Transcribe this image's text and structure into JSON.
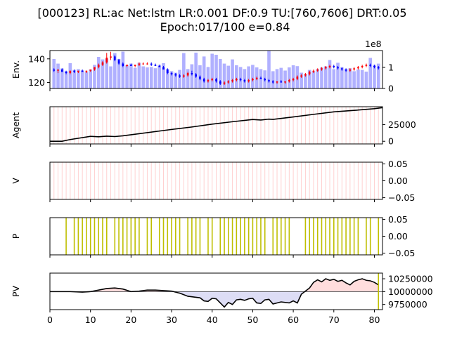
{
  "title_line1": "[000123] RL:ac Net:lstm LR:0.001 DF:0.9 TU:[760,7606] DRT:0.05",
  "title_line2": "Epoch:017/100 e=0.84",
  "chart_data": [
    {
      "type": "candlestick",
      "ylabel": "Env.",
      "xlim": [
        0,
        82
      ],
      "ylim": [
        115,
        147
      ],
      "yticks": [
        120,
        140
      ],
      "right_axis": {
        "ylim": [
          0,
          180000000
        ],
        "ticks": [
          "0",
          "1"
        ],
        "tick_values": [
          0,
          100000000
        ],
        "offset_label": "1e8"
      },
      "bullish_color": "#ff0000",
      "bearish_color": "#0000ff",
      "volume_color": "#b0b0ff",
      "ohlc": [
        [
          1,
          131,
          132,
          129,
          130
        ],
        [
          2,
          130,
          131,
          128,
          131
        ],
        [
          3,
          131,
          132,
          129,
          129
        ],
        [
          4,
          129,
          130,
          127,
          128
        ],
        [
          5,
          128,
          130,
          127,
          130
        ],
        [
          6,
          130,
          131,
          128,
          129
        ],
        [
          7,
          129,
          130,
          128,
          130
        ],
        [
          8,
          130,
          131,
          129,
          129
        ],
        [
          9,
          129,
          130,
          128,
          130
        ],
        [
          10,
          130,
          131,
          129,
          131
        ],
        [
          11,
          131,
          133,
          130,
          133
        ],
        [
          12,
          133,
          136,
          132,
          135
        ],
        [
          13,
          135,
          138,
          134,
          137
        ],
        [
          14,
          137,
          145,
          136,
          141
        ],
        [
          15,
          141,
          146,
          139,
          142
        ],
        [
          16,
          142,
          143,
          138,
          139
        ],
        [
          17,
          139,
          140,
          135,
          136
        ],
        [
          18,
          136,
          137,
          133,
          134
        ],
        [
          19,
          134,
          135,
          133,
          135
        ],
        [
          20,
          135,
          136,
          134,
          134
        ],
        [
          21,
          134,
          135,
          133,
          135
        ],
        [
          22,
          135,
          137,
          134,
          136
        ],
        [
          23,
          136,
          137,
          135,
          136
        ],
        [
          24,
          136,
          137,
          135,
          136
        ],
        [
          25,
          136,
          137,
          134,
          135
        ],
        [
          26,
          135,
          136,
          134,
          134
        ],
        [
          27,
          134,
          135,
          133,
          133
        ],
        [
          28,
          133,
          134,
          131,
          131
        ],
        [
          29,
          131,
          132,
          127,
          128
        ],
        [
          30,
          128,
          129,
          126,
          127
        ],
        [
          31,
          127,
          128,
          125,
          126
        ],
        [
          32,
          126,
          127,
          124,
          125
        ],
        [
          33,
          125,
          127,
          124,
          126
        ],
        [
          34,
          126,
          129,
          125,
          128
        ],
        [
          35,
          128,
          130,
          126,
          127
        ],
        [
          36,
          127,
          128,
          124,
          125
        ],
        [
          37,
          125,
          126,
          122,
          123
        ],
        [
          38,
          123,
          124,
          120,
          121
        ],
        [
          39,
          121,
          123,
          120,
          122
        ],
        [
          40,
          122,
          124,
          121,
          123
        ],
        [
          41,
          123,
          124,
          120,
          121
        ],
        [
          42,
          121,
          122,
          118,
          119
        ],
        [
          43,
          119,
          121,
          118,
          120
        ],
        [
          44,
          120,
          122,
          119,
          121
        ],
        [
          45,
          121,
          123,
          120,
          122
        ],
        [
          46,
          122,
          124,
          121,
          123
        ],
        [
          47,
          123,
          124,
          121,
          122
        ],
        [
          48,
          122,
          123,
          120,
          121
        ],
        [
          49,
          121,
          123,
          120,
          122
        ],
        [
          50,
          122,
          124,
          121,
          123
        ],
        [
          51,
          123,
          125,
          122,
          124
        ],
        [
          52,
          124,
          125,
          123,
          123
        ],
        [
          53,
          123,
          124,
          121,
          122
        ],
        [
          54,
          122,
          123,
          120,
          121
        ],
        [
          55,
          121,
          122,
          119,
          120
        ],
        [
          56,
          120,
          121,
          119,
          121
        ],
        [
          57,
          121,
          122,
          120,
          120
        ],
        [
          58,
          120,
          121,
          119,
          121
        ],
        [
          59,
          121,
          123,
          120,
          122
        ],
        [
          60,
          122,
          124,
          121,
          123
        ],
        [
          61,
          123,
          126,
          122,
          125
        ],
        [
          62,
          125,
          127,
          124,
          126
        ],
        [
          63,
          126,
          128,
          125,
          127
        ],
        [
          64,
          127,
          130,
          126,
          129
        ],
        [
          65,
          129,
          131,
          128,
          130
        ],
        [
          66,
          130,
          132,
          129,
          131
        ],
        [
          67,
          131,
          133,
          130,
          132
        ],
        [
          68,
          132,
          134,
          131,
          133
        ],
        [
          69,
          133,
          135,
          132,
          134
        ],
        [
          70,
          134,
          135,
          132,
          133
        ],
        [
          71,
          133,
          134,
          131,
          132
        ],
        [
          72,
          132,
          133,
          130,
          131
        ],
        [
          73,
          131,
          132,
          129,
          130
        ],
        [
          74,
          130,
          132,
          129,
          131
        ],
        [
          75,
          131,
          133,
          130,
          132
        ],
        [
          76,
          132,
          134,
          131,
          133
        ],
        [
          77,
          133,
          135,
          132,
          134
        ],
        [
          78,
          134,
          136,
          133,
          135
        ],
        [
          79,
          135,
          136,
          133,
          134
        ],
        [
          80,
          134,
          135,
          132,
          133
        ],
        [
          81,
          133,
          134,
          131,
          132
        ]
      ],
      "volume": [
        140000000,
        118000000,
        95000000,
        82000000,
        120000000,
        88000000,
        92000000,
        86000000,
        78000000,
        90000000,
        112000000,
        150000000,
        138000000,
        142000000,
        105000000,
        168000000,
        140000000,
        175000000,
        110000000,
        118000000,
        98000000,
        122000000,
        105000000,
        100000000,
        102000000,
        96000000,
        112000000,
        120000000,
        92000000,
        82000000,
        75000000,
        88000000,
        168000000,
        92000000,
        115000000,
        170000000,
        110000000,
        152000000,
        102000000,
        165000000,
        160000000,
        140000000,
        118000000,
        108000000,
        138000000,
        110000000,
        102000000,
        92000000,
        105000000,
        112000000,
        100000000,
        92000000,
        86000000,
        178000000,
        82000000,
        92000000,
        98000000,
        85000000,
        100000000,
        110000000,
        106000000,
        75000000,
        68000000,
        88000000,
        82000000,
        92000000,
        100000000,
        105000000,
        135000000,
        92000000,
        122000000,
        100000000,
        92000000,
        96000000,
        82000000,
        90000000,
        88000000,
        80000000,
        145000000,
        112000000,
        118000000
      ]
    },
    {
      "type": "line",
      "ylabel": "Agent",
      "xlim": [
        0,
        82
      ],
      "ylim": [
        -4000,
        52000
      ],
      "yticks": [
        0,
        25000
      ],
      "line_color": "#000000",
      "x": [
        0,
        3,
        5,
        10,
        12,
        14,
        16,
        18,
        20,
        30,
        35,
        40,
        45,
        50,
        52,
        54,
        55,
        60,
        65,
        70,
        75,
        80,
        82
      ],
      "y": [
        0,
        0,
        2600,
        7400,
        6800,
        7700,
        7100,
        8200,
        9800,
        17800,
        21500,
        25800,
        29400,
        32800,
        32000,
        33300,
        32900,
        36600,
        40500,
        44300,
        46500,
        49000,
        50600
      ],
      "background_stripes_color": "#ffd0d0"
    },
    {
      "type": "line",
      "ylabel": "V",
      "xlim": [
        0,
        82
      ],
      "ylim": [
        -0.055,
        0.055
      ],
      "yticks": [
        "0.05",
        "0.00",
        "−0.05"
      ],
      "ytick_values": [
        0.05,
        0.0,
        -0.05
      ],
      "background_stripes_color": "#ffd0d0"
    },
    {
      "type": "bar",
      "ylabel": "P",
      "xlim": [
        0,
        82
      ],
      "ylim": [
        -0.055,
        0.055
      ],
      "yticks": [
        "0.05",
        "0.00",
        "−0.05"
      ],
      "ytick_values": [
        0.05,
        0.0,
        -0.05
      ],
      "bar_color": "#bfbf00",
      "x": [
        4,
        6,
        7,
        8,
        9,
        10,
        11,
        12,
        13,
        14,
        16,
        17,
        18,
        19,
        20,
        21,
        22,
        24,
        25,
        27,
        28,
        29,
        30,
        31,
        32,
        34,
        35,
        36,
        37,
        39,
        40,
        42,
        43,
        44,
        45,
        46,
        47,
        48,
        49,
        50,
        51,
        52,
        53,
        55,
        56,
        57,
        58,
        59,
        63,
        64,
        65,
        66,
        67,
        68,
        69,
        70,
        71,
        72,
        73,
        74,
        75,
        76,
        78,
        79,
        81
      ]
    },
    {
      "type": "area",
      "ylabel": "PV",
      "xlim": [
        0,
        82
      ],
      "ylim": [
        9650000,
        10360000
      ],
      "yticks": [
        "10250000",
        "10000000",
        "9750000"
      ],
      "ytick_values": [
        10250000,
        10000000,
        9750000
      ],
      "baseline": 10000000,
      "above_color": "#ffdddd",
      "below_color": "#ddddf5",
      "line_color": "#000000",
      "marker_x": 81,
      "marker_color": "#bfbf00",
      "x": [
        0,
        5,
        8,
        10,
        12,
        14,
        16,
        18,
        20,
        22,
        24,
        26,
        28,
        30,
        32,
        34,
        35,
        36,
        37,
        38,
        39,
        40,
        41,
        42,
        43,
        44,
        45,
        46,
        47,
        48,
        49,
        50,
        51,
        52,
        53,
        54,
        55,
        56,
        57,
        58,
        59,
        60,
        61,
        62,
        63,
        64,
        65,
        66,
        67,
        68,
        69,
        70,
        71,
        72,
        73,
        74,
        75,
        76,
        77,
        78,
        79,
        80,
        81
      ],
      "y": [
        10000000,
        10000000,
        9990000,
        10000000,
        10030000,
        10060000,
        10070000,
        10050000,
        10000000,
        10010000,
        10030000,
        10030000,
        10020000,
        10010000,
        9970000,
        9910000,
        9900000,
        9890000,
        9880000,
        9820000,
        9810000,
        9870000,
        9860000,
        9780000,
        9700000,
        9790000,
        9750000,
        9840000,
        9850000,
        9830000,
        9860000,
        9870000,
        9780000,
        9770000,
        9840000,
        9850000,
        9760000,
        9780000,
        9800000,
        9790000,
        9780000,
        9820000,
        9780000,
        9950000,
        10010000,
        10070000,
        10180000,
        10230000,
        10190000,
        10250000,
        10220000,
        10240000,
        10200000,
        10220000,
        10170000,
        10130000,
        10200000,
        10230000,
        10250000,
        10220000,
        10210000,
        10180000,
        10130000
      ]
    }
  ],
  "xaxis": {
    "ticks": [
      "0",
      "10",
      "20",
      "30",
      "40",
      "50",
      "60",
      "70",
      "80"
    ],
    "tick_values": [
      0,
      10,
      20,
      30,
      40,
      50,
      60,
      70,
      80
    ]
  }
}
